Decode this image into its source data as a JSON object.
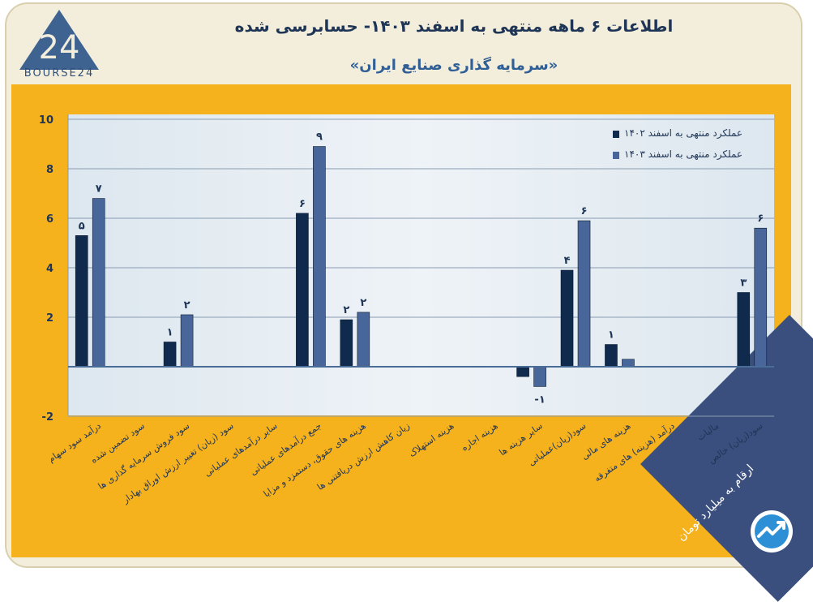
{
  "logo": {
    "text": "BOURSE24"
  },
  "header": {
    "title": "اطلاعات ۶ ماهه منتهی به اسفند ۱۴۰۳- حسابرسی شده",
    "subtitle": "«سرمایه گذاری صنایع ایران»"
  },
  "footer": {
    "unit_note": "ارقام به میلیارد تومان"
  },
  "colors": {
    "series_1402": "#0f2a4d",
    "series_1403": "#48669a",
    "background_panel": "#f6b21d",
    "frame": "#f3eedc",
    "axis_line": "#4a6d98"
  },
  "chart_data": {
    "type": "bar",
    "title": "",
    "xlabel": "",
    "ylabel": "",
    "ylim": [
      -2,
      10
    ],
    "yticks": [
      -2,
      2,
      4,
      6,
      8,
      10
    ],
    "grid": true,
    "legend_position": "top-right",
    "categories": [
      "درآمد سود سهام",
      "سود تضمین شده",
      "سود فروش سرمایه گذاری ها",
      "سود (زیان) تغییر ارزش اوراق بهادار",
      "سایر درآمدهای عملیاتی",
      "جمع درآمدهای عملیاتی",
      "هزینه های حقوق، دستمزد و مزایا",
      "زیان کاهش ارزش دریافتنی ها",
      "هزینه استهلاک",
      "هزینه اجاره",
      "سایر هزینه ها",
      "سود(زیان)عملیاتی",
      "هزینه های مالی",
      "درآمد (هزینه) های متفرقه",
      "مالیات",
      "سود(زیان) خالص"
    ],
    "series": [
      {
        "name": "عملکرد منتهی به اسفند ۱۴۰۲",
        "values": [
          5.3,
          0,
          1.0,
          0,
          0,
          6.2,
          1.9,
          0,
          0,
          0,
          -0.4,
          3.9,
          0.9,
          0,
          0,
          3.0
        ],
        "labels": [
          "۵",
          "",
          "۱",
          "",
          "",
          "۶",
          "۲",
          "",
          "",
          "",
          "",
          "۴",
          "۱",
          "",
          "",
          "۳"
        ]
      },
      {
        "name": "عملکرد منتهی به اسفند ۱۴۰۳",
        "values": [
          6.8,
          0,
          2.1,
          0,
          0,
          8.9,
          2.2,
          0,
          0,
          0,
          -0.8,
          5.9,
          0.3,
          0,
          0,
          5.6
        ],
        "labels": [
          "۷",
          "",
          "۲",
          "",
          "",
          "۹",
          "۲",
          "",
          "",
          "",
          "-۱",
          "۶",
          "",
          "",
          "",
          "۶"
        ]
      }
    ]
  }
}
